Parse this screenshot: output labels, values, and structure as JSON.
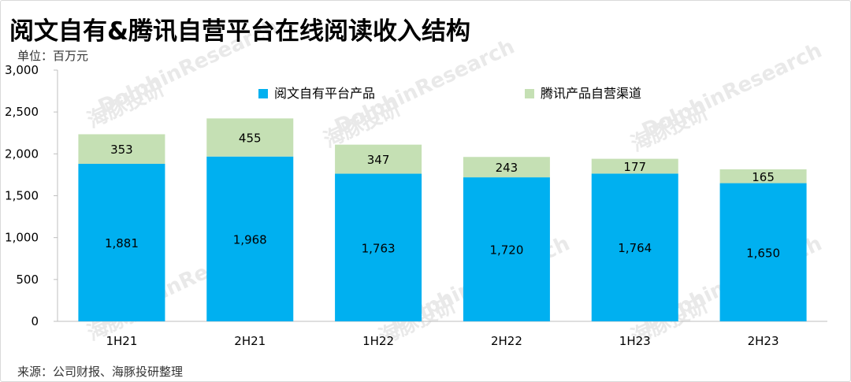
{
  "title": "阅文自有&腾讯自营平台在线阅读收入结构",
  "unit": "单位：百万元",
  "source": "来源：公司财报、海豚投研整理",
  "watermark": {
    "brand": "DolphinResearch",
    "cn": "海豚投研"
  },
  "chart_data": {
    "type": "bar",
    "stacked": true,
    "categories": [
      "1H21",
      "2H21",
      "1H22",
      "2H22",
      "1H23",
      "2H23"
    ],
    "series": [
      {
        "name": "阅文自有平台产品",
        "values": [
          1881,
          1968,
          1763,
          1720,
          1764,
          1650
        ],
        "color": "#00b0f0",
        "labels": [
          "1,881",
          "1,968",
          "1,763",
          "1,720",
          "1,764",
          "1,650"
        ]
      },
      {
        "name": "腾讯产品自营渠道",
        "values": [
          353,
          455,
          347,
          243,
          177,
          165
        ],
        "color": "#c5e0b4",
        "labels": [
          "353",
          "455",
          "347",
          "243",
          "177",
          "165"
        ]
      }
    ],
    "ylim": [
      0,
      3000
    ],
    "yticks": [
      0,
      500,
      1000,
      1500,
      2000,
      2500,
      3000
    ],
    "ytick_labels": [
      "0",
      "500",
      "1,000",
      "1,500",
      "2,000",
      "2,500",
      "3,000"
    ],
    "legend": "top",
    "grid": false
  }
}
